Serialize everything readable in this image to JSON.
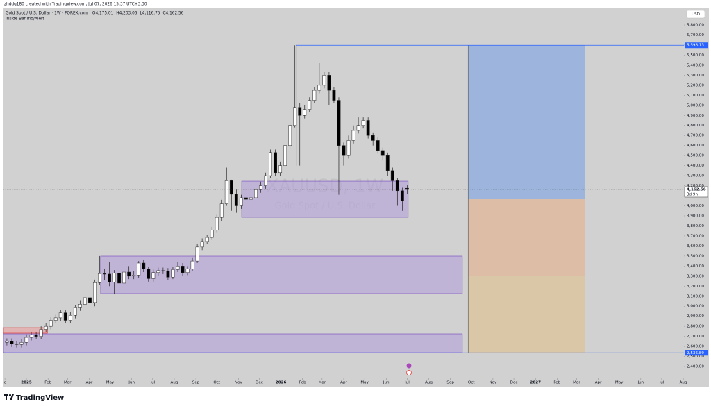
{
  "header": {
    "credit": "zhddg180 created with TradingView.com, Jul 07, 2026 15:37 UTC+3:30",
    "indicator": "Inside Bar Ind/Alert"
  },
  "footer": "TradingView",
  "chart_data": {
    "type": "candlestick",
    "title": "Gold Spot / U.S. Dollar · 1W · FOREX.com",
    "ohlc_header": [
      {
        "value": 4175.01,
        "label": "O4,175.01"
      },
      {
        "value": 4203.06,
        "label": "H4,203.06"
      },
      {
        "value": 4116.75,
        "label": "L4,116.75"
      },
      {
        "value": 4162.56,
        "label": "C4,162.56"
      }
    ],
    "currency": "USD",
    "watermark": [
      "XAUUSD, 1W",
      "Gold Spot / U.S. Dollar"
    ],
    "up_color": "#ffffff",
    "down_color": "#000000",
    "x": [
      -4,
      -3,
      -2,
      -1,
      0,
      1,
      2,
      3,
      4,
      5,
      6,
      7,
      8,
      9,
      10,
      11,
      12,
      13,
      14,
      15,
      16,
      17,
      18,
      19,
      20,
      21,
      22,
      23,
      24,
      25,
      26,
      27,
      28,
      29,
      30,
      31,
      32,
      33,
      34,
      35,
      36,
      37,
      38,
      39,
      40,
      41,
      42,
      43,
      44,
      45,
      46,
      47,
      48,
      49,
      50,
      51,
      52,
      53,
      54,
      55,
      56,
      57,
      58,
      59,
      60,
      61,
      62,
      63,
      64,
      65,
      66,
      67,
      68,
      69,
      70,
      71,
      72,
      73,
      74,
      75,
      76,
      77,
      78
    ],
    "open": [
      2640,
      2650,
      2625,
      2620,
      2640,
      2690,
      2715,
      2700,
      2770,
      2800,
      2860,
      2885,
      2935,
      2860,
      2910,
      2985,
      3020,
      3085,
      3037,
      3235,
      3325,
      3320,
      3240,
      3330,
      3230,
      3340,
      3300,
      3310,
      3430,
      3370,
      3275,
      3335,
      3355,
      3350,
      3290,
      3365,
      3400,
      3335,
      3370,
      3450,
      3590,
      3645,
      3685,
      3760,
      3885,
      4020,
      4250,
      4115,
      4000,
      4080,
      4065,
      4080,
      4160,
      4200,
      4300,
      4530,
      4330,
      4400,
      4600,
      4800,
      4980,
      4900,
      4960,
      5050,
      5150,
      5200,
      5300,
      5150,
      5050,
      4600,
      4500,
      4650,
      4750,
      4800,
      4850,
      4700,
      4650,
      4550,
      4500,
      4350,
      4250,
      4150,
      4175.01
    ],
    "high": [
      2680,
      2680,
      2655,
      2670,
      2720,
      2745,
      2745,
      2800,
      2830,
      2890,
      2915,
      2965,
      2965,
      2940,
      3015,
      3060,
      3115,
      3170,
      3265,
      3500,
      3370,
      3440,
      3360,
      3360,
      3370,
      3400,
      3350,
      3450,
      3460,
      3390,
      3365,
      3385,
      3385,
      3380,
      3395,
      3440,
      3430,
      3400,
      3480,
      3620,
      3675,
      3710,
      3790,
      3910,
      4060,
      4380,
      4260,
      4160,
      4110,
      4120,
      4110,
      4190,
      4240,
      4330,
      4560,
      4560,
      4440,
      4630,
      4830,
      5598,
      5020,
      5000,
      5080,
      5180,
      5420,
      5330,
      5330,
      5180,
      5080,
      4630,
      4700,
      4800,
      4880,
      4880,
      4880,
      4730,
      4680,
      4580,
      4530,
      4380,
      4280,
      4180,
      4203.06
    ],
    "low": [
      2610,
      2595,
      2590,
      2590,
      2610,
      2660,
      2670,
      2670,
      2740,
      2770,
      2830,
      2855,
      2830,
      2830,
      2880,
      2955,
      2990,
      2960,
      3000,
      3210,
      3260,
      3200,
      3120,
      3200,
      3200,
      3270,
      3270,
      3280,
      3340,
      3245,
      3245,
      3305,
      3320,
      3260,
      3270,
      3340,
      3300,
      3310,
      3350,
      3430,
      3560,
      3620,
      3660,
      3730,
      3850,
      4000,
      3950,
      3930,
      3970,
      4030,
      4040,
      4050,
      4130,
      4170,
      4280,
      4300,
      4300,
      4370,
      4570,
      4780,
      4400,
      4870,
      4930,
      5020,
      5120,
      5170,
      5000,
      5020,
      4110,
      4400,
      4470,
      4620,
      4720,
      4770,
      4670,
      4600,
      4520,
      4450,
      4300,
      4150,
      4000,
      3950,
      4116.75
    ],
    "close": [
      2650,
      2625,
      2620,
      2640,
      2690,
      2715,
      2700,
      2770,
      2800,
      2860,
      2885,
      2935,
      2860,
      2910,
      2985,
      3020,
      3085,
      3037,
      3235,
      3325,
      3320,
      3240,
      3330,
      3230,
      3340,
      3300,
      3310,
      3430,
      3370,
      3275,
      3335,
      3355,
      3350,
      3290,
      3365,
      3400,
      3335,
      3370,
      3450,
      3590,
      3645,
      3685,
      3760,
      3885,
      4020,
      4250,
      4115,
      4000,
      4080,
      4065,
      4080,
      4160,
      4200,
      4300,
      4530,
      4330,
      4400,
      4600,
      4800,
      4980,
      4900,
      4960,
      5050,
      5150,
      5200,
      5300,
      5150,
      5050,
      4600,
      4500,
      4650,
      4750,
      4800,
      4850,
      4700,
      4650,
      4550,
      4500,
      4350,
      4250,
      4150,
      4050,
      4162.56
    ],
    "xlim": [
      -4.7,
      134.7
    ],
    "xticks": [
      {
        "value": -4.4,
        "label": "c"
      },
      {
        "value": 0,
        "label": "2025"
      },
      {
        "value": 4.43,
        "label": "Feb"
      },
      {
        "value": 8.43,
        "label": "Mar"
      },
      {
        "value": 12.86,
        "label": "Apr"
      },
      {
        "value": 17.14,
        "label": "May"
      },
      {
        "value": 21.57,
        "label": "Jun"
      },
      {
        "value": 25.86,
        "label": "Jul"
      },
      {
        "value": 30.29,
        "label": "Aug"
      },
      {
        "value": 34.71,
        "label": "Sep"
      },
      {
        "value": 39,
        "label": "Oct"
      },
      {
        "value": 43.43,
        "label": "Nov"
      },
      {
        "value": 47.71,
        "label": "Dec"
      },
      {
        "value": 52.14,
        "label": "2026"
      },
      {
        "value": 56.57,
        "label": "Feb"
      },
      {
        "value": 60.57,
        "label": "Mar"
      },
      {
        "value": 65,
        "label": "Apr"
      },
      {
        "value": 69.29,
        "label": "May"
      },
      {
        "value": 73.71,
        "label": "Jun"
      },
      {
        "value": 78,
        "label": "Jul"
      },
      {
        "value": 82.43,
        "label": "Aug"
      },
      {
        "value": 86.86,
        "label": "Sep"
      },
      {
        "value": 91.14,
        "label": "Oct"
      },
      {
        "value": 95.57,
        "label": "Nov"
      },
      {
        "value": 99.86,
        "label": "Dec"
      },
      {
        "value": 104.29,
        "label": "2027"
      },
      {
        "value": 108.71,
        "label": "Feb"
      },
      {
        "value": 112.71,
        "label": "Mar"
      },
      {
        "value": 117.14,
        "label": "Apr"
      },
      {
        "value": 121.43,
        "label": "May"
      },
      {
        "value": 125.86,
        "label": "Jun"
      },
      {
        "value": 130.14,
        "label": "Jul"
      },
      {
        "value": 134.57,
        "label": "Aug"
      }
    ],
    "ylim": [
      2283,
      5966
    ],
    "yticks": [
      {
        "value": 2400,
        "label": "2,400.00"
      },
      {
        "value": 2500,
        "label": "2,500.00"
      },
      {
        "value": 2600,
        "label": "2,600.00"
      },
      {
        "value": 2700,
        "label": "2,700.00"
      },
      {
        "value": 2800,
        "label": "2,800.00"
      },
      {
        "value": 2900,
        "label": "2,900.00"
      },
      {
        "value": 3000,
        "label": "3,000.00"
      },
      {
        "value": 3100,
        "label": "3,100.00"
      },
      {
        "value": 3200,
        "label": "3,200.00"
      },
      {
        "value": 3300,
        "label": "3,300.00"
      },
      {
        "value": 3400,
        "label": "3,400.00"
      },
      {
        "value": 3500,
        "label": "3,500.00"
      },
      {
        "value": 3600,
        "label": "3,600.00"
      },
      {
        "value": 3700,
        "label": "3,700.00"
      },
      {
        "value": 3800,
        "label": "3,800.00"
      },
      {
        "value": 3900,
        "label": "3,900.00"
      },
      {
        "value": 4000,
        "label": "4,000.00"
      },
      {
        "value": 4100,
        "label": "4,100.00"
      },
      {
        "value": 4200,
        "label": "4,200.00"
      },
      {
        "value": 4300,
        "label": "4,300.00"
      },
      {
        "value": 4400,
        "label": "4,400.00"
      },
      {
        "value": 4500,
        "label": "4,500.00"
      },
      {
        "value": 4600,
        "label": "4,600.00"
      },
      {
        "value": 4700,
        "label": "4,700.00"
      },
      {
        "value": 4800,
        "label": "4,800.00"
      },
      {
        "value": 4900,
        "label": "4,900.00"
      },
      {
        "value": 5000,
        "label": "5,000.00"
      },
      {
        "value": 5100,
        "label": "5,100.00"
      },
      {
        "value": 5200,
        "label": "5,200.00"
      },
      {
        "value": 5300,
        "label": "5,300.00"
      },
      {
        "value": 5400,
        "label": "5,400.00"
      },
      {
        "value": 5500,
        "label": "5,500.00"
      },
      {
        "value": 5600,
        "label": "5,600.00"
      },
      {
        "value": 5700,
        "label": "5,700.00"
      },
      {
        "value": 5800,
        "label": "5,800.00"
      }
    ],
    "grid": false,
    "zones": [
      {
        "x": [
          44.1,
          78.2
        ],
        "y": [
          3886,
          4245
        ],
        "color": "#b39ddb"
      },
      {
        "x": [
          15.2,
          89.3
        ],
        "y": [
          3126,
          3499
        ],
        "color": "#b39ddb"
      },
      {
        "x": [
          -4.7,
          89.3
        ],
        "y": [
          2538,
          2725
        ],
        "color": "#b39ddb"
      },
      {
        "x": [
          -4.7,
          4.3
        ],
        "y": [
          2732,
          2787
        ],
        "color": "#ef9a9a"
      }
    ],
    "position": {
      "x": [
        90.5,
        114.5
      ],
      "levels": [
        5598.13,
        4065,
        3305,
        2536.89
      ],
      "colors": [
        "#90aee0",
        "#e0b89a",
        "#dcc49c"
      ]
    },
    "price_labels": [
      {
        "value": 5598.13,
        "label": "5,598.13",
        "x_start": 55.3
      },
      {
        "value": 2536.89,
        "label": "2,536.89",
        "x_start": -4.7
      }
    ],
    "last_price": {
      "value": 4162.56,
      "label": "4,162.56"
    },
    "countdown": "3d 9h"
  }
}
